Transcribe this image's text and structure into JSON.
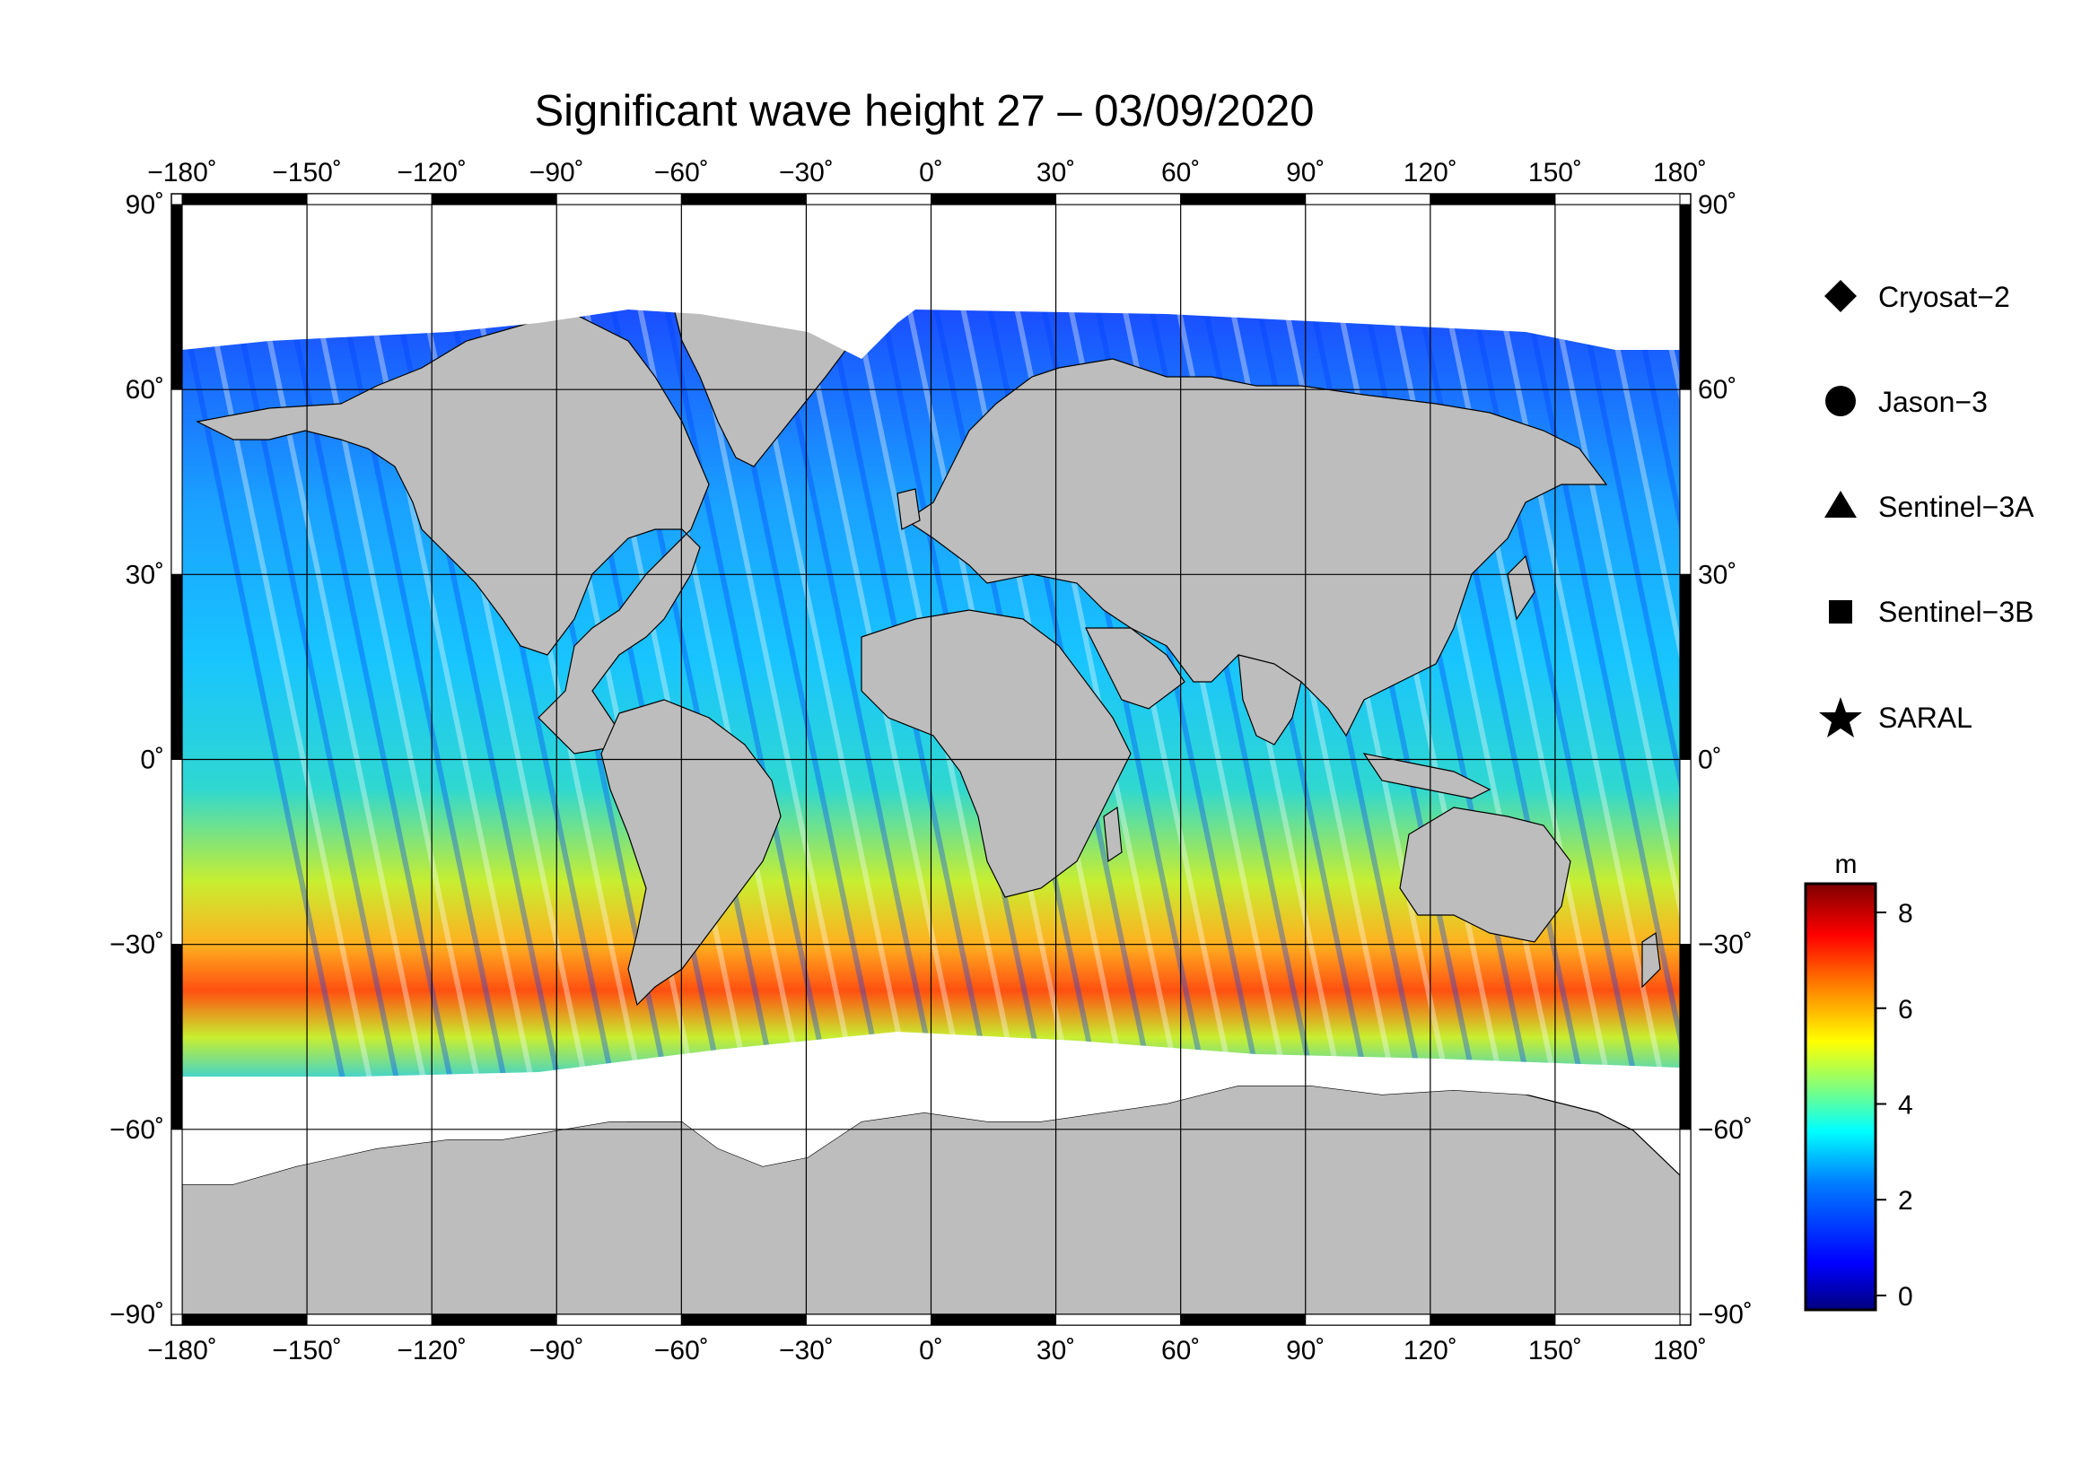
{
  "title": "Significant wave height 27 – 03/09/2020",
  "map": {
    "lon_ticks": [
      "−180˚",
      "−150˚",
      "−120˚",
      "−90˚",
      "−60˚",
      "−30˚",
      "0˚",
      "30˚",
      "60˚",
      "90˚",
      "120˚",
      "150˚",
      "180˚"
    ],
    "lat_ticks_left": [
      "90˚",
      "60˚",
      "30˚",
      "0˚",
      "−30˚",
      "−60˚",
      "−90˚"
    ],
    "lat_ticks_right": [
      "90˚",
      "60˚",
      "30˚",
      "0˚",
      "−30˚",
      "−60˚",
      "−90˚"
    ],
    "lon_values": [
      -180,
      -150,
      -120,
      -90,
      -60,
      -30,
      0,
      30,
      60,
      90,
      120,
      150,
      180
    ],
    "lat_values": [
      90,
      60,
      30,
      0,
      -30,
      -60,
      -90
    ],
    "land_color": "#bdbdbd",
    "ice_color": "#ffffff",
    "gridline_color": "#000000"
  },
  "legend": {
    "items": [
      {
        "label": "Cryosat−2",
        "icon": "diamond-icon"
      },
      {
        "label": "Jason−3",
        "icon": "circle-icon"
      },
      {
        "label": "Sentinel−3A",
        "icon": "triangle-icon"
      },
      {
        "label": "Sentinel−3B",
        "icon": "square-icon"
      },
      {
        "label": "SARAL",
        "icon": "star-icon"
      }
    ]
  },
  "colorbar": {
    "unit": "m",
    "ticks": [
      "8",
      "6",
      "4",
      "2",
      "0"
    ],
    "tick_values": [
      8,
      6,
      4,
      2,
      0
    ],
    "range": [
      -0.3,
      8.6
    ],
    "colors": [
      "#00007f",
      "#0000ff",
      "#007fff",
      "#00ffff",
      "#7fff7f",
      "#ffff00",
      "#ff7f00",
      "#ff0000",
      "#7f0000"
    ]
  },
  "chart_data": {
    "type": "heatmap",
    "title": "Significant wave height 27 – 03/09/2020",
    "xlabel": "",
    "ylabel": "",
    "xlim": [
      -180,
      180
    ],
    "ylim": [
      -90,
      90
    ],
    "colorbar_unit": "m",
    "colorbar_range": [
      0,
      8
    ],
    "series": [
      {
        "name": "Cryosat−2"
      },
      {
        "name": "Jason−3"
      },
      {
        "name": "Sentinel−3A"
      },
      {
        "name": "Sentinel−3B"
      },
      {
        "name": "SARAL"
      }
    ]
  }
}
